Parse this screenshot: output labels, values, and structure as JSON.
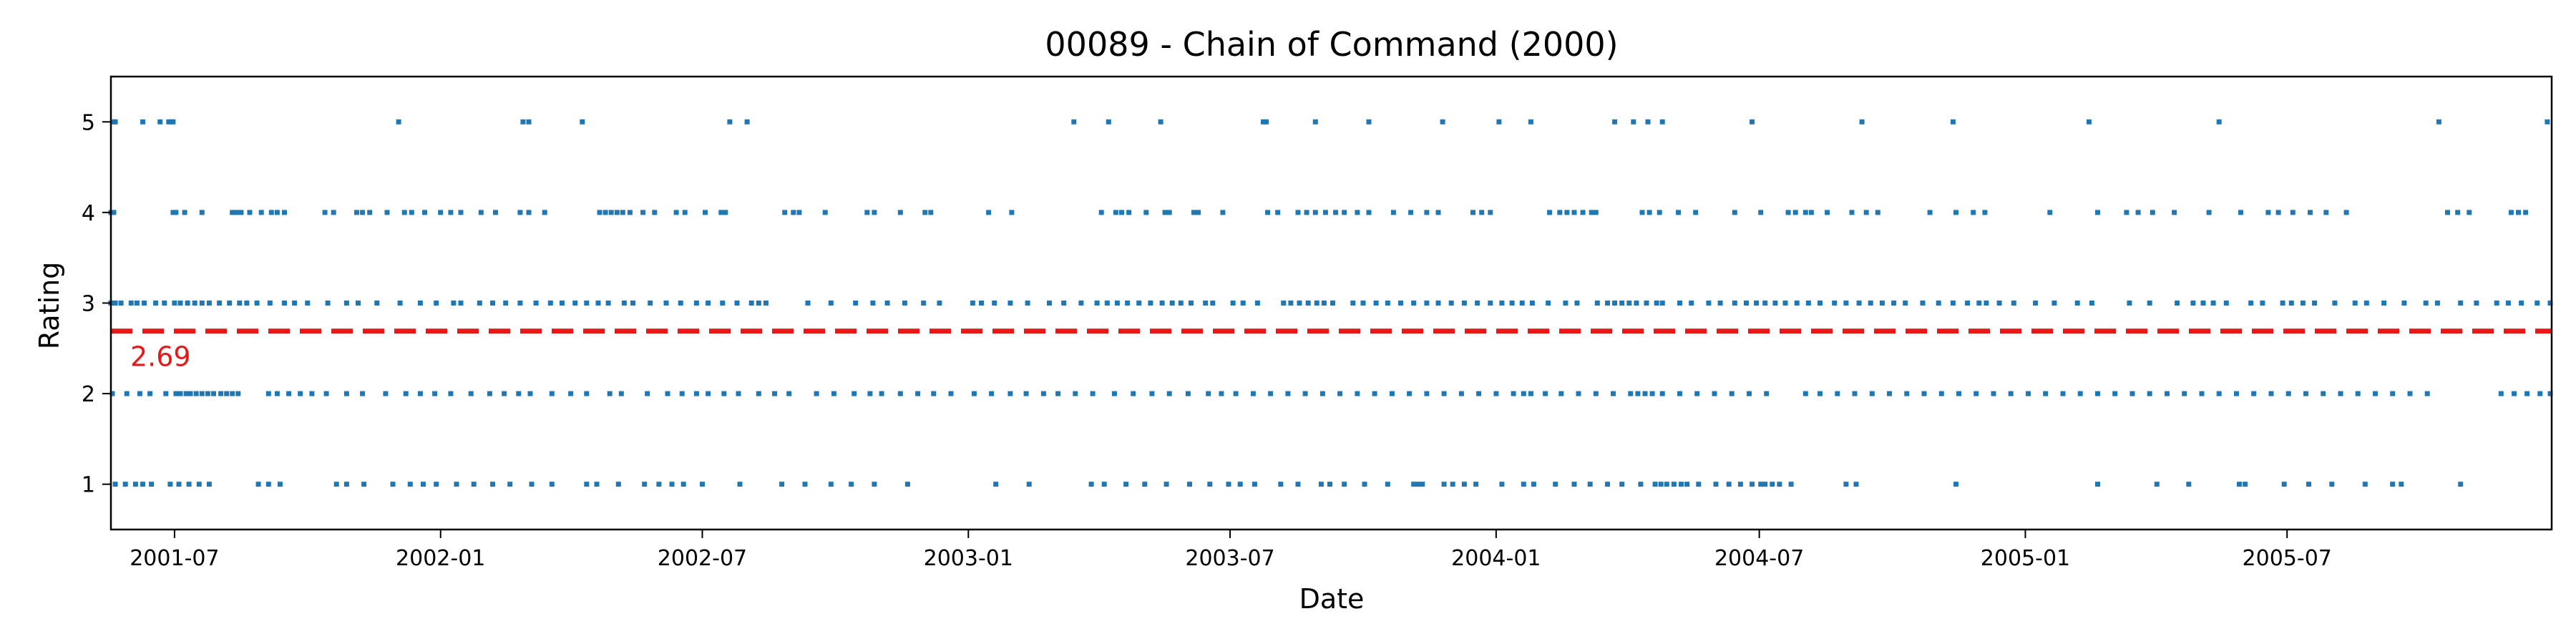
{
  "chart_data": {
    "type": "scatter",
    "title": "00089 - Chain of Command (2000)",
    "xlabel": "Date",
    "ylabel": "Rating",
    "xlim": [
      "2001-05-18",
      "2005-12-31"
    ],
    "ylim": [
      0.5,
      5.5
    ],
    "x_ticks": [
      "2001-07",
      "2002-01",
      "2002-07",
      "2003-01",
      "2003-07",
      "2004-01",
      "2004-07",
      "2005-01",
      "2005-07"
    ],
    "y_ticks": [
      1,
      2,
      3,
      4,
      5
    ],
    "grid": false,
    "point_color": "#1f77b4",
    "series": [
      {
        "values": [
          {
            "y": 5,
            "dates": [
              "2001-05-20",
              "2001-05-21",
              "2001-06-09",
              "2001-06-21",
              "2001-06-27",
              "2001-06-29",
              "2001-06-30",
              "2001-12-03",
              "2002-02-27",
              "2002-03-03",
              "2002-04-09",
              "2002-07-20",
              "2002-08-01",
              "2003-03-15",
              "2003-04-08",
              "2003-05-14",
              "2003-07-24",
              "2003-07-26",
              "2003-08-29",
              "2003-10-05",
              "2003-11-25",
              "2004-01-03",
              "2004-01-25",
              "2004-03-23",
              "2004-04-05",
              "2004-04-15",
              "2004-04-25",
              "2004-06-26",
              "2004-09-10",
              "2004-11-12",
              "2005-02-14",
              "2005-05-15",
              "2005-10-14",
              "2005-12-28"
            ]
          },
          {
            "y": 4,
            "dates": [
              "2001-05-18",
              "2001-05-20",
              "2001-06-30",
              "2001-07-02",
              "2001-07-08",
              "2001-07-20",
              "2001-08-10",
              "2001-08-13",
              "2001-08-16",
              "2001-08-22",
              "2001-08-30",
              "2001-09-06",
              "2001-09-10",
              "2001-09-15",
              "2001-10-13",
              "2001-10-19",
              "2001-11-04",
              "2001-11-08",
              "2001-11-13",
              "2001-11-25",
              "2001-12-07",
              "2001-12-12",
              "2001-12-21",
              "2002-01-01",
              "2002-01-08",
              "2002-01-15",
              "2002-01-29",
              "2002-02-08",
              "2002-02-25",
              "2002-03-03",
              "2002-03-14",
              "2002-04-21",
              "2002-04-25",
              "2002-04-29",
              "2002-05-03",
              "2002-05-07",
              "2002-05-12",
              "2002-05-21",
              "2002-05-29",
              "2002-06-13",
              "2002-06-19",
              "2002-07-03",
              "2002-07-14",
              "2002-07-17",
              "2002-08-27",
              "2002-09-02",
              "2002-09-06",
              "2002-09-24",
              "2002-10-23",
              "2002-10-28",
              "2002-11-15",
              "2002-12-02",
              "2002-12-06",
              "2003-01-15",
              "2003-01-31",
              "2003-04-03",
              "2003-04-13",
              "2003-04-17",
              "2003-04-22",
              "2003-05-04",
              "2003-05-17",
              "2003-05-20",
              "2003-06-06",
              "2003-06-09",
              "2003-06-26",
              "2003-07-27",
              "2003-08-03",
              "2003-08-17",
              "2003-08-23",
              "2003-08-29",
              "2003-09-05",
              "2003-09-12",
              "2003-09-18",
              "2003-09-27",
              "2003-10-05",
              "2003-10-22",
              "2003-11-03",
              "2003-11-14",
              "2003-11-22",
              "2003-12-16",
              "2003-12-22",
              "2003-12-28",
              "2004-02-07",
              "2004-02-14",
              "2004-02-19",
              "2004-02-24",
              "2004-03-01",
              "2004-03-07",
              "2004-03-10",
              "2004-04-11",
              "2004-04-16",
              "2004-04-23",
              "2004-05-06",
              "2004-05-18",
              "2004-06-14",
              "2004-07-02",
              "2004-07-21",
              "2004-07-26",
              "2004-08-02",
              "2004-08-06",
              "2004-08-17",
              "2004-09-03",
              "2004-09-13",
              "2004-09-21",
              "2004-10-27",
              "2004-11-14",
              "2004-11-26",
              "2004-12-04",
              "2005-01-18",
              "2005-02-20",
              "2005-03-12",
              "2005-03-20",
              "2005-03-30",
              "2005-04-14",
              "2005-05-08",
              "2005-05-30",
              "2005-06-18",
              "2005-06-25",
              "2005-07-05",
              "2005-07-17",
              "2005-07-28",
              "2005-08-11",
              "2005-10-20",
              "2005-10-27",
              "2005-11-04",
              "2005-12-03",
              "2005-12-08",
              "2005-12-13"
            ]
          },
          {
            "y": 3,
            "dates": [
              "2001-05-18",
              "2001-05-21",
              "2001-05-25",
              "2001-06-01",
              "2001-06-05",
              "2001-06-10",
              "2001-06-18",
              "2001-06-24",
              "2001-07-01",
              "2001-07-05",
              "2001-07-10",
              "2001-07-15",
              "2001-07-20",
              "2001-07-25",
              "2001-08-01",
              "2001-08-08",
              "2001-08-15",
              "2001-08-20",
              "2001-08-27",
              "2001-09-05",
              "2001-09-15",
              "2001-09-22",
              "2001-10-01",
              "2001-10-15",
              "2001-10-28",
              "2001-11-05",
              "2001-11-18",
              "2001-12-04",
              "2001-12-18",
              "2001-12-29",
              "2002-01-10",
              "2002-01-15",
              "2002-01-28",
              "2002-02-06",
              "2002-02-15",
              "2002-02-25",
              "2002-03-08",
              "2002-03-18",
              "2002-03-26",
              "2002-04-04",
              "2002-04-12",
              "2002-04-20",
              "2002-04-27",
              "2002-05-08",
              "2002-05-14",
              "2002-05-26",
              "2002-06-06",
              "2002-06-16",
              "2002-06-27",
              "2002-07-05",
              "2002-07-15",
              "2002-07-25",
              "2002-08-04",
              "2002-08-09",
              "2002-08-14",
              "2002-09-12",
              "2002-09-28",
              "2002-10-15",
              "2002-10-27",
              "2002-11-06",
              "2002-11-18",
              "2002-12-01",
              "2002-12-12",
              "2003-01-04",
              "2003-01-10",
              "2003-01-19",
              "2003-01-30",
              "2003-02-11",
              "2003-02-26",
              "2003-03-08",
              "2003-03-20",
              "2003-03-31",
              "2003-04-07",
              "2003-04-14",
              "2003-04-21",
              "2003-04-29",
              "2003-05-07",
              "2003-05-15",
              "2003-05-22",
              "2003-05-28",
              "2003-06-04",
              "2003-06-14",
              "2003-06-19",
              "2003-07-03",
              "2003-07-10",
              "2003-07-20",
              "2003-08-07",
              "2003-08-12",
              "2003-08-18",
              "2003-08-24",
              "2003-08-30",
              "2003-09-04",
              "2003-09-10",
              "2003-09-24",
              "2003-10-01",
              "2003-10-10",
              "2003-10-18",
              "2003-10-27",
              "2003-11-05",
              "2003-11-14",
              "2003-11-22",
              "2003-12-01",
              "2003-12-10",
              "2003-12-19",
              "2003-12-28",
              "2004-01-05",
              "2004-01-12",
              "2004-01-19",
              "2004-01-26",
              "2004-02-06",
              "2004-02-18",
              "2004-02-26",
              "2004-03-11",
              "2004-03-18",
              "2004-03-23",
              "2004-03-28",
              "2004-04-02",
              "2004-04-07",
              "2004-04-14",
              "2004-04-21",
              "2004-04-25",
              "2004-05-07",
              "2004-05-15",
              "2004-05-27",
              "2004-06-04",
              "2004-06-14",
              "2004-06-22",
              "2004-06-29",
              "2004-07-05",
              "2004-07-12",
              "2004-07-19",
              "2004-07-27",
              "2004-08-04",
              "2004-08-12",
              "2004-08-22",
              "2004-08-30",
              "2004-09-08",
              "2004-09-16",
              "2004-09-24",
              "2004-10-02",
              "2004-10-10",
              "2004-10-22",
              "2004-11-02",
              "2004-11-12",
              "2004-11-22",
              "2004-11-30",
              "2004-12-05",
              "2004-12-14",
              "2004-12-24",
              "2005-01-08",
              "2005-01-21",
              "2005-02-06",
              "2005-02-16",
              "2005-03-14",
              "2005-03-28",
              "2005-04-16",
              "2005-04-27",
              "2005-05-04",
              "2005-05-11",
              "2005-05-20",
              "2005-06-06",
              "2005-06-14",
              "2005-06-28",
              "2005-07-04",
              "2005-07-12",
              "2005-07-20",
              "2005-08-03",
              "2005-08-17",
              "2005-08-25",
              "2005-09-06",
              "2005-09-20",
              "2005-10-05",
              "2005-10-13",
              "2005-10-29",
              "2005-11-09",
              "2005-11-23",
              "2005-12-01",
              "2005-12-10",
              "2005-12-21",
              "2005-12-30"
            ]
          },
          {
            "y": 2,
            "dates": [
              "2001-05-19",
              "2001-05-29",
              "2001-06-07",
              "2001-06-14",
              "2001-06-25",
              "2001-07-02",
              "2001-07-05",
              "2001-07-09",
              "2001-07-12",
              "2001-07-16",
              "2001-07-20",
              "2001-07-24",
              "2001-07-28",
              "2001-08-02",
              "2001-08-06",
              "2001-08-10",
              "2001-08-14",
              "2001-09-04",
              "2001-09-10",
              "2001-09-18",
              "2001-09-26",
              "2001-10-04",
              "2001-10-14",
              "2001-10-28",
              "2001-11-08",
              "2001-11-24",
              "2001-12-08",
              "2001-12-18",
              "2001-12-28",
              "2002-01-08",
              "2002-01-22",
              "2002-02-04",
              "2002-02-14",
              "2002-02-24",
              "2002-03-04",
              "2002-03-19",
              "2002-04-01",
              "2002-04-12",
              "2002-04-28",
              "2002-05-06",
              "2002-05-24",
              "2002-06-07",
              "2002-06-17",
              "2002-06-27",
              "2002-07-05",
              "2002-07-16",
              "2002-07-26",
              "2002-08-09",
              "2002-08-20",
              "2002-08-30",
              "2002-09-18",
              "2002-09-30",
              "2002-10-14",
              "2002-10-25",
              "2002-11-02",
              "2002-11-15",
              "2002-11-27",
              "2002-12-08",
              "2002-12-20",
              "2003-01-05",
              "2003-01-17",
              "2003-01-30",
              "2003-02-10",
              "2003-02-22",
              "2003-03-04",
              "2003-03-16",
              "2003-03-28",
              "2003-04-12",
              "2003-04-25",
              "2003-05-08",
              "2003-05-20",
              "2003-06-02",
              "2003-06-16",
              "2003-06-25",
              "2003-07-05",
              "2003-07-17",
              "2003-07-29",
              "2003-08-10",
              "2003-08-22",
              "2003-09-03",
              "2003-09-15",
              "2003-09-27",
              "2003-10-09",
              "2003-10-21",
              "2003-11-02",
              "2003-11-14",
              "2003-11-26",
              "2003-12-08",
              "2003-12-20",
              "2004-01-01",
              "2004-01-13",
              "2004-01-20",
              "2004-01-25",
              "2004-02-04",
              "2004-02-15",
              "2004-02-27",
              "2004-03-10",
              "2004-03-22",
              "2004-04-03",
              "2004-04-08",
              "2004-04-13",
              "2004-04-18",
              "2004-04-25",
              "2004-05-07",
              "2004-05-19",
              "2004-05-31",
              "2004-06-12",
              "2004-06-24",
              "2004-07-06",
              "2004-08-02",
              "2004-08-12",
              "2004-08-24",
              "2004-09-05",
              "2004-09-17",
              "2004-09-29",
              "2004-10-11",
              "2004-10-23",
              "2004-11-04",
              "2004-11-16",
              "2004-11-28",
              "2004-12-10",
              "2004-12-22",
              "2005-01-03",
              "2005-01-15",
              "2005-01-27",
              "2005-02-08",
              "2005-02-20",
              "2005-03-04",
              "2005-03-16",
              "2005-03-28",
              "2005-04-09",
              "2005-04-21",
              "2005-05-03",
              "2005-05-15",
              "2005-05-27",
              "2005-06-08",
              "2005-06-20",
              "2005-07-02",
              "2005-07-14",
              "2005-07-26",
              "2005-08-07",
              "2005-08-19",
              "2005-08-31",
              "2005-09-12",
              "2005-09-24",
              "2005-10-06",
              "2005-11-26",
              "2005-12-05",
              "2005-12-14",
              "2005-12-23",
              "2005-12-30"
            ]
          },
          {
            "y": 1,
            "dates": [
              "2001-05-21",
              "2001-05-28",
              "2001-06-04",
              "2001-06-09",
              "2001-06-15",
              "2001-06-28",
              "2001-07-04",
              "2001-07-11",
              "2001-07-18",
              "2001-07-25",
              "2001-08-28",
              "2001-09-04",
              "2001-09-12",
              "2001-10-21",
              "2001-10-28",
              "2001-11-09",
              "2001-11-29",
              "2001-12-11",
              "2001-12-20",
              "2001-12-29",
              "2002-01-12",
              "2002-01-24",
              "2002-02-06",
              "2002-02-18",
              "2002-03-05",
              "2002-03-19",
              "2002-04-12",
              "2002-04-19",
              "2002-05-04",
              "2002-05-22",
              "2002-06-01",
              "2002-06-10",
              "2002-06-18",
              "2002-07-01",
              "2002-07-27",
              "2002-08-25",
              "2002-09-10",
              "2002-09-28",
              "2002-10-12",
              "2002-10-28",
              "2002-11-20",
              "2003-01-20",
              "2003-02-12",
              "2003-03-27",
              "2003-04-05",
              "2003-04-20",
              "2003-05-03",
              "2003-05-18",
              "2003-06-03",
              "2003-06-17",
              "2003-06-30",
              "2003-07-08",
              "2003-07-18",
              "2003-08-05",
              "2003-08-17",
              "2003-09-02",
              "2003-09-08",
              "2003-09-18",
              "2003-10-02",
              "2003-10-18",
              "2003-11-05",
              "2003-11-08",
              "2003-11-11",
              "2003-11-26",
              "2003-12-02",
              "2003-12-10",
              "2003-12-18",
              "2004-01-05",
              "2004-01-20",
              "2004-01-27",
              "2004-02-11",
              "2004-02-24",
              "2004-03-06",
              "2004-03-18",
              "2004-03-28",
              "2004-04-10",
              "2004-04-20",
              "2004-04-24",
              "2004-04-28",
              "2004-05-03",
              "2004-05-08",
              "2004-05-12",
              "2004-05-20",
              "2004-06-01",
              "2004-06-10",
              "2004-06-18",
              "2004-06-26",
              "2004-07-02",
              "2004-07-05",
              "2004-07-10",
              "2004-07-15",
              "2004-07-23",
              "2004-08-30",
              "2004-09-06",
              "2004-11-14",
              "2005-02-20",
              "2005-04-02",
              "2005-04-24",
              "2005-05-29",
              "2005-06-02",
              "2005-06-29",
              "2005-07-16",
              "2005-08-01",
              "2005-08-24",
              "2005-09-12",
              "2005-09-18",
              "2005-10-29"
            ]
          }
        ]
      }
    ],
    "mean": {
      "value": 2.69,
      "label": "2.69",
      "color": "#e8171a"
    }
  }
}
